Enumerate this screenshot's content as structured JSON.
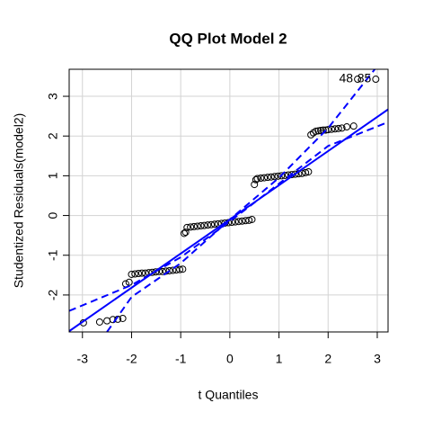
{
  "chart_data": {
    "type": "scatter",
    "title": "QQ Plot Model 2",
    "x_label": "t Quantiles",
    "y_label": "Studentized Residuals(model2)",
    "color": "#000000",
    "x": [
      -2.98,
      -2.65,
      -2.5,
      -2.38,
      -2.28,
      -2.18,
      -2.12,
      -2.05,
      -2.0,
      -1.93,
      -1.86,
      -1.79,
      -1.72,
      -1.65,
      -1.58,
      -1.51,
      -1.44,
      -1.37,
      -1.3,
      -1.23,
      -1.16,
      -1.09,
      -1.02,
      -0.96,
      -0.93,
      -0.9,
      -0.87,
      -0.8,
      -0.73,
      -0.66,
      -0.59,
      -0.52,
      -0.45,
      -0.38,
      -0.31,
      -0.24,
      -0.17,
      -0.1,
      -0.03,
      0.04,
      0.11,
      0.18,
      0.25,
      0.32,
      0.39,
      0.45,
      0.5,
      0.53,
      0.56,
      0.63,
      0.7,
      0.77,
      0.84,
      0.91,
      0.98,
      1.05,
      1.12,
      1.19,
      1.26,
      1.33,
      1.4,
      1.47,
      1.54,
      1.6,
      1.65,
      1.7,
      1.75,
      1.8,
      1.85,
      1.9,
      1.95,
      2.0,
      2.07,
      2.14,
      2.21,
      2.28,
      2.38,
      2.52,
      2.6,
      2.97
    ],
    "values": [
      -2.7,
      -2.68,
      -2.65,
      -2.62,
      -2.61,
      -2.59,
      -1.72,
      -1.68,
      -1.48,
      -1.47,
      -1.46,
      -1.45,
      -1.45,
      -1.44,
      -1.43,
      -1.42,
      -1.41,
      -1.41,
      -1.4,
      -1.39,
      -1.38,
      -1.37,
      -1.36,
      -1.35,
      -0.45,
      -0.42,
      -0.3,
      -0.29,
      -0.28,
      -0.27,
      -0.26,
      -0.25,
      -0.24,
      -0.23,
      -0.22,
      -0.21,
      -0.2,
      -0.19,
      -0.18,
      -0.17,
      -0.16,
      -0.15,
      -0.14,
      -0.13,
      -0.12,
      -0.1,
      0.78,
      0.9,
      0.93,
      0.94,
      0.95,
      0.96,
      0.97,
      0.98,
      0.99,
      1.0,
      1.01,
      1.02,
      1.03,
      1.04,
      1.05,
      1.06,
      1.08,
      1.1,
      2.03,
      2.08,
      2.12,
      2.13,
      2.14,
      2.15,
      2.15,
      2.16,
      2.17,
      2.18,
      2.19,
      2.2,
      2.23,
      2.25,
      3.43,
      3.43
    ],
    "xlim": [
      -3.27,
      3.22
    ],
    "ylim": [
      -2.93,
      3.68
    ],
    "xticks": [
      -3,
      -2,
      -1,
      0,
      1,
      2,
      3
    ],
    "yticks": [
      -2,
      -1,
      0,
      1,
      2,
      3
    ],
    "grid": true,
    "lines": [
      {
        "type": "line",
        "color": "#0000ff",
        "dashed": false,
        "x": [
          -3.27,
          3.22
        ],
        "values": [
          -2.91,
          2.67
        ]
      },
      {
        "type": "line",
        "color": "#0000ff",
        "dashed": true,
        "x": [
          -3.27,
          -2,
          -1,
          0,
          1,
          2,
          3.22
        ],
        "values": [
          -2.4,
          -1.75,
          -1.05,
          -0.15,
          0.8,
          1.75,
          2.35
        ]
      },
      {
        "type": "line",
        "color": "#0000ff",
        "dashed": true,
        "x": [
          -2.5,
          -2,
          -1,
          0,
          1,
          2,
          2.95
        ],
        "values": [
          -2.93,
          -2.05,
          -1.2,
          -0.1,
          0.95,
          2.2,
          3.68
        ]
      }
    ],
    "annotations": [
      {
        "text": "48",
        "x": 2.6,
        "y": 3.43
      },
      {
        "text": "85",
        "x": 2.97,
        "y": 3.43
      }
    ]
  }
}
